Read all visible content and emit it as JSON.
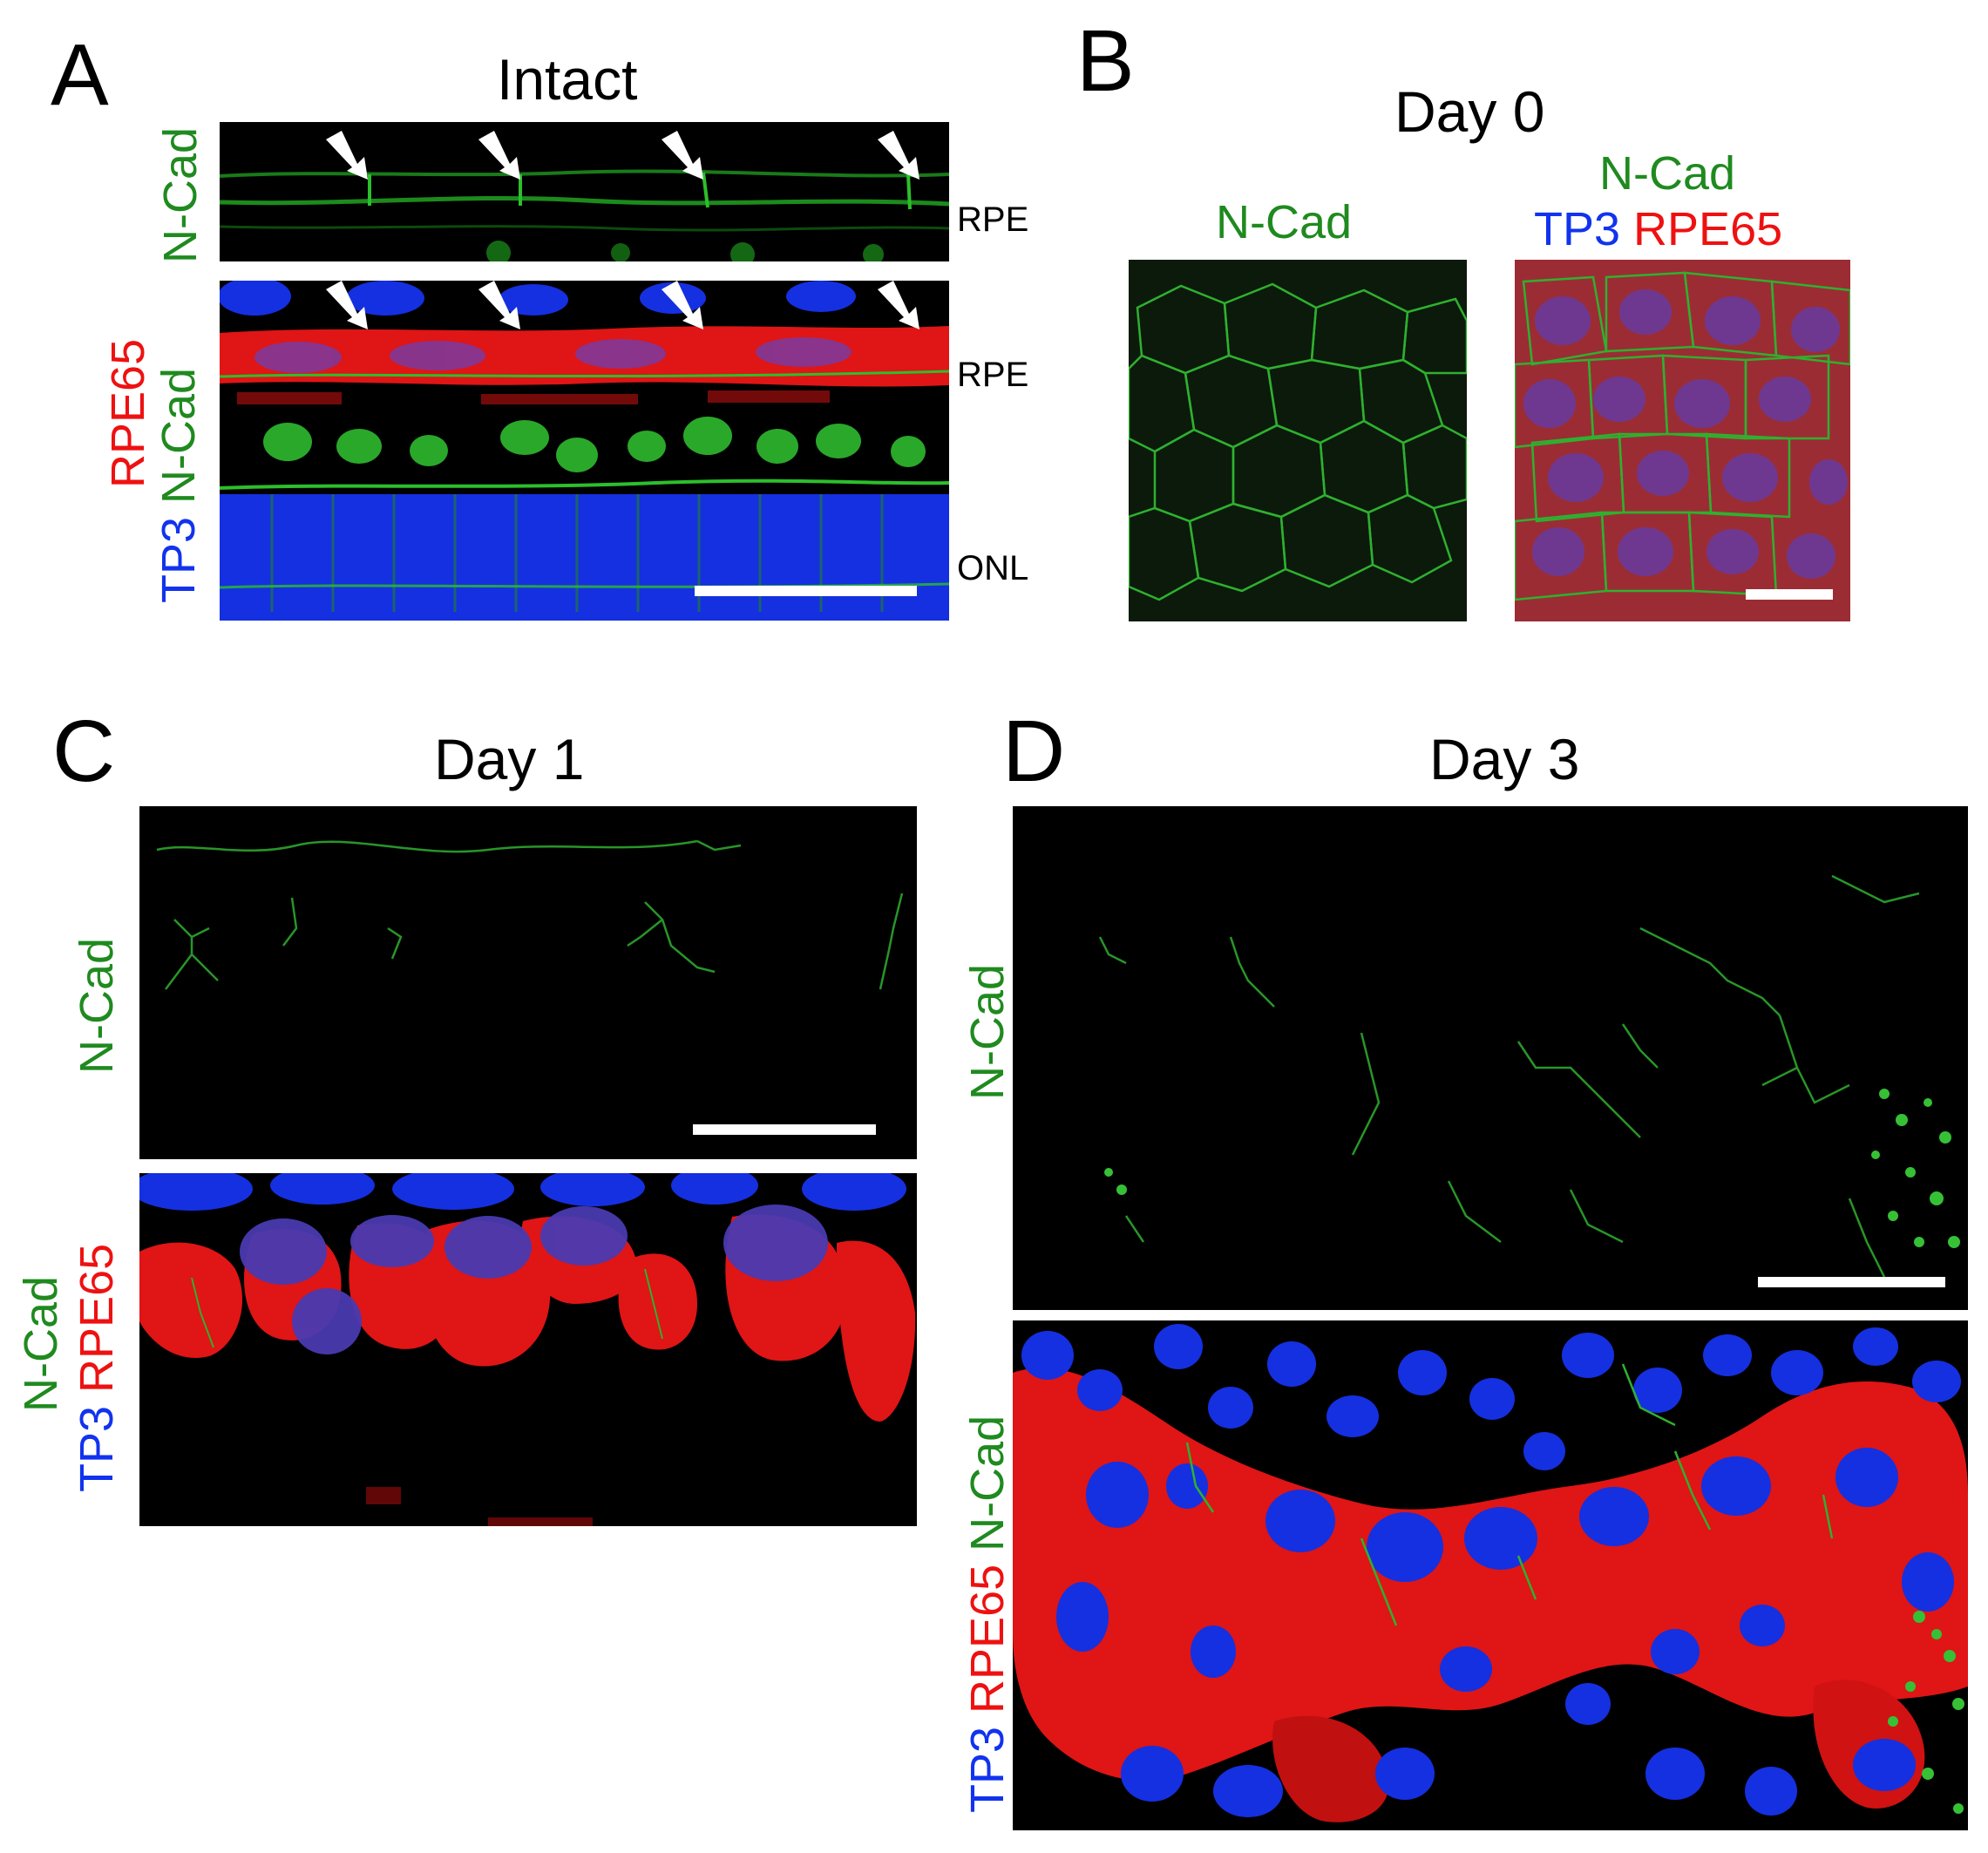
{
  "colors": {
    "green": "#1f8a1f",
    "blue": "#1133ee",
    "red": "#ee1111",
    "background": "#ffffff",
    "image_bg": "#000000"
  },
  "panelA": {
    "letter": "A",
    "title": "Intact",
    "top_label": "N-Cad",
    "bottom_labels": {
      "tp3": "TP3",
      "ncad": "N-Cad",
      "rpe65": "RPE65"
    },
    "layer_top_rpe": "RPE",
    "layer_bottom_rpe": "RPE",
    "layer_onl": "ONL",
    "arrow_icon": "white-arrow-icon"
  },
  "panelB": {
    "letter": "B",
    "title": "Day 0",
    "left_label": "N-Cad",
    "right_label_line1": "N-Cad",
    "right_label_tp3": "TP3",
    "right_label_rpe65": "RPE65"
  },
  "panelC": {
    "letter": "C",
    "title": "Day 1",
    "top_label": "N-Cad",
    "bottom_labels": {
      "tp3": "TP3",
      "ncad": "N-Cad",
      "rpe65": "RPE65"
    }
  },
  "panelD": {
    "letter": "D",
    "title": "Day 3",
    "top_label": "N-Cad",
    "bottom_labels": {
      "tp3": "TP3",
      "rpe65": "RPE65",
      "ncad": "N-Cad"
    }
  }
}
